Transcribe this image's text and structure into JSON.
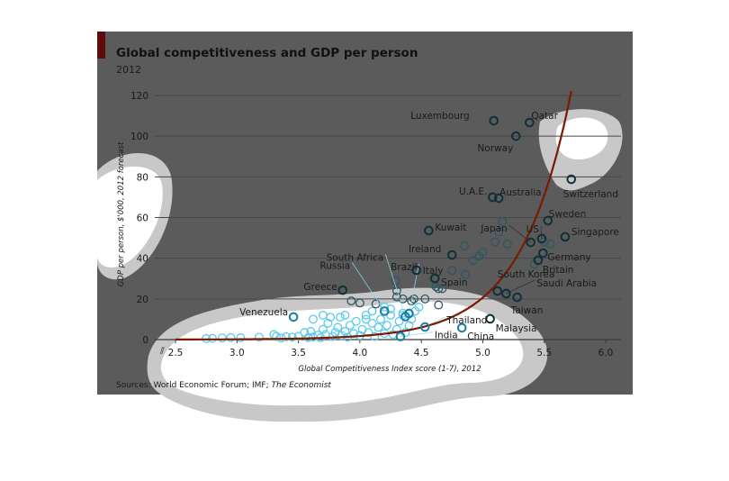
{
  "chart_data": {
    "type": "scatter",
    "title": "Global competitiveness and GDP per person",
    "subtitle": "2012",
    "xlabel": "Global Competitiveness Index score (1-7), 2012",
    "ylabel": "GDP per person, $'000, 2012 forecast",
    "source_prefix": "Sources: World Economic Forum; IMF; ",
    "source_italic": "The Economist",
    "xlim": [
      2.5,
      6.0
    ],
    "ylim": [
      0,
      120
    ],
    "xticks": [
      "2.5",
      "3.0",
      "3.5",
      "4.0",
      "4.5",
      "5.0",
      "5.5",
      "6.0"
    ],
    "yticks": [
      "0",
      "20",
      "40",
      "60",
      "80",
      "100",
      "120"
    ],
    "grid": true,
    "trendline": {
      "type": "exponential",
      "anchor_x": 4.5,
      "anchor_y": 6,
      "growth": 2.47,
      "x_range": [
        2.5,
        5.73
      ]
    },
    "labelled": [
      {
        "name": "Luxembourg",
        "x": 5.09,
        "y": 107.6
      },
      {
        "name": "Qatar",
        "x": 5.38,
        "y": 106.7
      },
      {
        "name": "Norway",
        "x": 5.27,
        "y": 100
      },
      {
        "name": "Switzerland",
        "x": 5.72,
        "y": 78.8
      },
      {
        "name": "U.A.E.",
        "x": 5.08,
        "y": 70
      },
      {
        "name": "Australia",
        "x": 5.13,
        "y": 69.5
      },
      {
        "name": "Sweden",
        "x": 5.53,
        "y": 58.5
      },
      {
        "name": "Singapore",
        "x": 5.67,
        "y": 50.5
      },
      {
        "name": "Kuwait",
        "x": 4.56,
        "y": 53.6
      },
      {
        "name": "Japan",
        "x": 5.39,
        "y": 47.8
      },
      {
        "name": "US",
        "x": 5.48,
        "y": 49.6
      },
      {
        "name": "Germany",
        "x": 5.49,
        "y": 42.5
      },
      {
        "name": "Britain",
        "x": 5.45,
        "y": 39
      },
      {
        "name": "Ireland",
        "x": 4.75,
        "y": 41.6
      },
      {
        "name": "Italy",
        "x": 4.46,
        "y": 34.1
      },
      {
        "name": "Spain",
        "x": 4.61,
        "y": 30.1
      },
      {
        "name": "South Africa",
        "x": 4.37,
        "y": 11.3
      },
      {
        "name": "Russia",
        "x": 4.2,
        "y": 14.0
      },
      {
        "name": "Brazil",
        "x": 4.4,
        "y": 12.8
      },
      {
        "name": "Greece",
        "x": 3.86,
        "y": 24.3
      },
      {
        "name": "South Korea",
        "x": 5.12,
        "y": 23.9
      },
      {
        "name": "Saudi Arabia",
        "x": 5.19,
        "y": 22.6
      },
      {
        "name": "Taiwan",
        "x": 5.28,
        "y": 20.8
      },
      {
        "name": "Malaysia",
        "x": 5.06,
        "y": 10.2
      },
      {
        "name": "Thailand",
        "x": 4.53,
        "y": 6.2
      },
      {
        "name": "India",
        "x": 4.33,
        "y": 1.5
      },
      {
        "name": "China",
        "x": 4.83,
        "y": 5.8
      },
      {
        "name": "Venezuela",
        "x": 3.46,
        "y": 11.1
      }
    ],
    "others": [
      [
        2.75,
        0.5
      ],
      [
        2.8,
        0.6
      ],
      [
        2.88,
        0.8
      ],
      [
        2.95,
        1
      ],
      [
        3.03,
        0.9
      ],
      [
        3.18,
        1.2
      ],
      [
        3.3,
        2.5
      ],
      [
        3.32,
        1.5
      ],
      [
        3.36,
        0.8
      ],
      [
        3.4,
        1.4
      ],
      [
        3.45,
        1.2
      ],
      [
        3.5,
        1.6
      ],
      [
        3.55,
        3.5
      ],
      [
        3.58,
        1
      ],
      [
        3.62,
        1.3
      ],
      [
        3.66,
        2.2
      ],
      [
        3.68,
        0.9
      ],
      [
        3.7,
        5
      ],
      [
        3.72,
        2.5
      ],
      [
        3.74,
        8
      ],
      [
        3.76,
        11
      ],
      [
        3.78,
        1.5
      ],
      [
        3.8,
        3.5
      ],
      [
        3.82,
        6
      ],
      [
        3.84,
        11
      ],
      [
        3.85,
        2
      ],
      [
        3.88,
        4
      ],
      [
        3.9,
        1.2
      ],
      [
        3.92,
        7
      ],
      [
        3.95,
        3
      ],
      [
        3.97,
        9
      ],
      [
        4.0,
        2
      ],
      [
        4.02,
        5
      ],
      [
        4.05,
        12
      ],
      [
        4.07,
        3.5
      ],
      [
        4.1,
        8
      ],
      [
        4.12,
        1.5
      ],
      [
        4.15,
        6
      ],
      [
        4.17,
        10
      ],
      [
        4.2,
        3
      ],
      [
        4.22,
        7
      ],
      [
        4.25,
        12
      ],
      [
        4.27,
        2.5
      ],
      [
        4.3,
        5
      ],
      [
        4.32,
        9
      ],
      [
        4.35,
        13
      ],
      [
        4.37,
        3.5
      ],
      [
        4.4,
        7
      ],
      [
        4.42,
        10
      ],
      [
        4.45,
        14
      ],
      [
        3.62,
        10
      ],
      [
        3.7,
        12
      ],
      [
        3.6,
        4
      ],
      [
        4.1,
        14
      ],
      [
        4.25,
        15
      ],
      [
        4.0,
        18
      ],
      [
        4.13,
        17.5
      ],
      [
        4.3,
        21
      ],
      [
        4.35,
        20
      ],
      [
        4.42,
        19
      ],
      [
        4.48,
        16
      ],
      [
        4.62,
        26
      ],
      [
        4.64,
        25
      ],
      [
        4.67,
        25
      ],
      [
        4.64,
        17
      ],
      [
        4.75,
        34
      ],
      [
        4.86,
        32
      ],
      [
        4.92,
        39
      ],
      [
        4.97,
        41
      ],
      [
        5.0,
        43
      ],
      [
        4.85,
        46
      ],
      [
        5.1,
        48
      ],
      [
        5.13,
        53
      ],
      [
        5.16,
        58
      ],
      [
        5.2,
        47
      ],
      [
        5.42,
        37
      ],
      [
        5.5,
        48
      ],
      [
        5.55,
        47
      ],
      [
        4.29,
        29
      ],
      [
        4.3,
        24
      ],
      [
        3.93,
        19
      ],
      [
        4.2,
        16
      ],
      [
        4.44,
        20
      ],
      [
        4.53,
        20
      ],
      [
        4.35,
        12
      ],
      [
        4.05,
        10
      ],
      [
        3.88,
        12
      ]
    ]
  }
}
